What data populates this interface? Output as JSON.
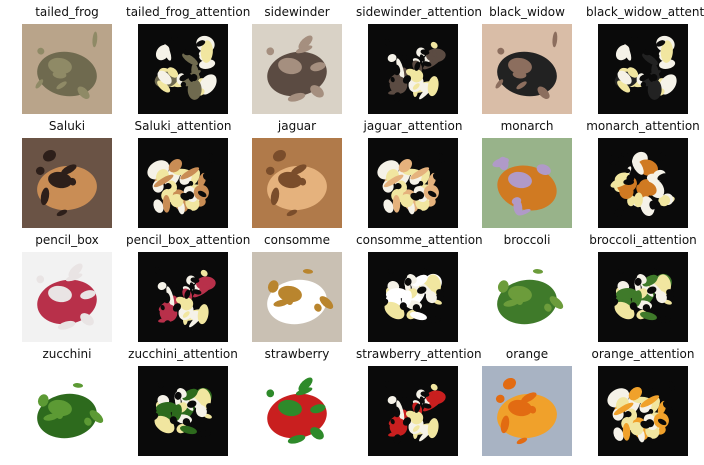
{
  "grid": {
    "rows": [
      [
        "tailed_frog",
        "tailed_frog_attention",
        "sidewinder",
        "sidewinder_attention",
        "black_widow",
        "black_widow_attention"
      ],
      [
        "Saluki",
        "Saluki_attention",
        "jaguar",
        "jaguar_attention",
        "monarch",
        "monarch_attention"
      ],
      [
        "pencil_box",
        "pencil_box_attention",
        "consomme",
        "consomme_attention",
        "broccoli",
        "broccoli_attention"
      ],
      [
        "zucchini",
        "zucchini_attention",
        "strawberry",
        "strawberry_attention",
        "orange",
        "orange_attention"
      ]
    ]
  },
  "images": {
    "tailed_frog": {
      "bg": "#b9a48a",
      "main": "#6f6a4f",
      "accent": "#8f8a66"
    },
    "sidewinder": {
      "bg": "#d9d2c6",
      "main": "#5b4b42",
      "accent": "#a58f7f"
    },
    "black_widow": {
      "bg": "#d9bda7",
      "main": "#222222",
      "accent": "#8c6e5e"
    },
    "Saluki": {
      "bg": "#6a5345",
      "main": "#c98d55",
      "accent": "#2d1f1a"
    },
    "jaguar": {
      "bg": "#b07a4a",
      "main": "#e5b27d",
      "accent": "#7a4d2b"
    },
    "monarch": {
      "bg": "#98b38a",
      "main": "#d07a22",
      "accent": "#b09ac8"
    },
    "pencil_box": {
      "bg": "#f2f2f2",
      "main": "#b8304a",
      "accent": "#e9e4e4"
    },
    "consomme": {
      "bg": "#c9c0b3",
      "main": "#ffffff",
      "accent": "#b9852e"
    },
    "broccoli": {
      "bg": "#ffffff",
      "main": "#3f7a2a",
      "accent": "#6c9c3b"
    },
    "zucchini": {
      "bg": "#ffffff",
      "main": "#2d6a1d",
      "accent": "#5c9a34"
    },
    "strawberry": {
      "bg": "#ffffff",
      "main": "#c91f1f",
      "accent": "#2e8a2a"
    },
    "orange": {
      "bg": "#a8b3c3",
      "main": "#f0a12b",
      "accent": "#e26b12"
    }
  }
}
